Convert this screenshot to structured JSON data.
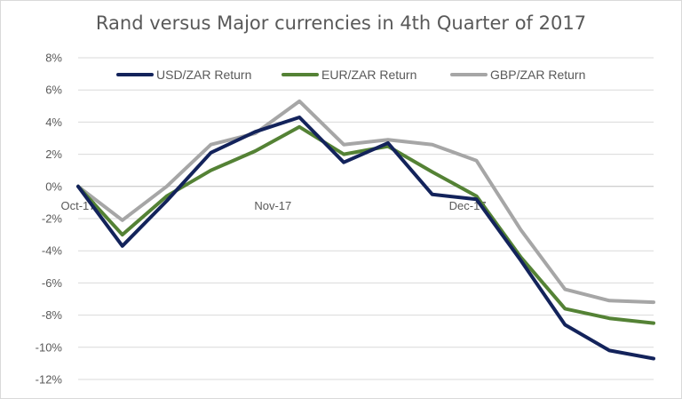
{
  "chart_data": {
    "type": "line",
    "title": "Rand versus Major currencies in 4th Quarter of 2017",
    "xlabel": "",
    "ylabel": "",
    "ylim": [
      -12,
      8
    ],
    "y_ticks": [
      "8%",
      "6%",
      "4%",
      "2%",
      "0%",
      "-2%",
      "-4%",
      "-6%",
      "-8%",
      "-10%",
      "-12%"
    ],
    "x_tick_labels": [
      {
        "label": "Oct-17",
        "index": 0
      },
      {
        "label": "Nov-17",
        "index": 4.4
      },
      {
        "label": "Dec-17",
        "index": 8.8
      }
    ],
    "grid": "horizontal",
    "legend_position": "top",
    "series": [
      {
        "name": "USD/ZAR Return",
        "color": "#13235b",
        "values": [
          0,
          -3.7,
          -0.9,
          2.1,
          3.4,
          4.3,
          1.5,
          2.7,
          -0.5,
          -0.8,
          -4.6,
          -8.6,
          -10.2,
          -10.7
        ]
      },
      {
        "name": "EUR/ZAR Return",
        "color": "#548235",
        "values": [
          0,
          -3.0,
          -0.6,
          1.0,
          2.2,
          3.7,
          2.0,
          2.5,
          0.9,
          -0.6,
          -4.4,
          -7.6,
          -8.2,
          -8.5
        ]
      },
      {
        "name": "GBP/ZAR Return",
        "color": "#a6a6a6",
        "values": [
          0,
          -2.1,
          0.0,
          2.6,
          3.3,
          5.3,
          2.6,
          2.9,
          2.6,
          1.6,
          -2.7,
          -6.4,
          -7.1,
          -7.2
        ]
      }
    ]
  }
}
